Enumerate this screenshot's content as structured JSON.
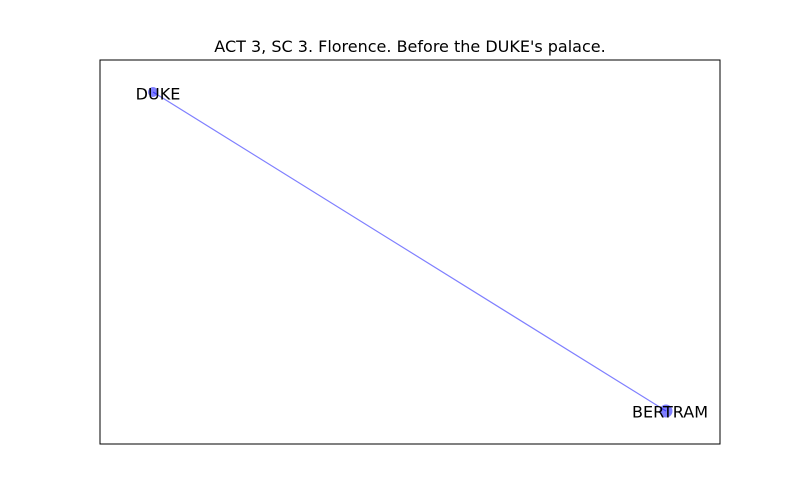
{
  "title": "ACT 3, SC 3. Florence. Before the DUKE's palace.",
  "colors": {
    "node": "#0000ff",
    "edge": "#0000ff",
    "frame": "#000000",
    "background": "#ffffff"
  },
  "graph": {
    "nodes": [
      {
        "id": "DUKE",
        "label": "DUKE"
      },
      {
        "id": "BERTRAM",
        "label": "BERTRAM"
      }
    ],
    "edges": [
      {
        "source": "DUKE",
        "target": "BERTRAM"
      }
    ]
  }
}
